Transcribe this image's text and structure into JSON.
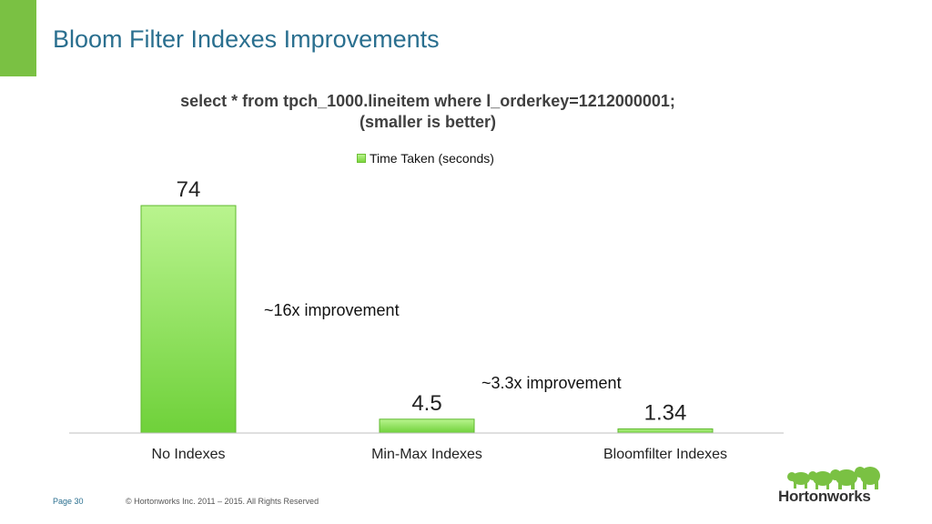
{
  "slide": {
    "title": "Bloom Filter Indexes Improvements",
    "accent_color": "#7ac143"
  },
  "chart_data": {
    "type": "bar",
    "title_lines": [
      "select * from tpch_1000.lineitem where l_orderkey=1212000001;",
      "(smaller is better)"
    ],
    "categories": [
      "No Indexes",
      "Min-Max Indexes",
      "Bloomfilter Indexes"
    ],
    "series": [
      {
        "name": "Time Taken (seconds)",
        "values": [
          74,
          4.5,
          1.34
        ]
      }
    ],
    "data_labels": [
      "74",
      "4.5",
      "1.34"
    ],
    "annotations": [
      "~16x improvement",
      "~3.3x improvement"
    ],
    "legend_position": "top",
    "grid": false,
    "bar_color_top": "#b9f48e",
    "bar_color_bottom": "#6fd13a",
    "ylim": [
      0,
      74
    ]
  },
  "footer": {
    "page": "Page 30",
    "copyright": "© Hortonworks Inc. 2011 – 2015. All Rights Reserved"
  },
  "logo": {
    "text": "Hortonworks",
    "icon": "elephant-herd-icon",
    "color": "#7ac143"
  }
}
